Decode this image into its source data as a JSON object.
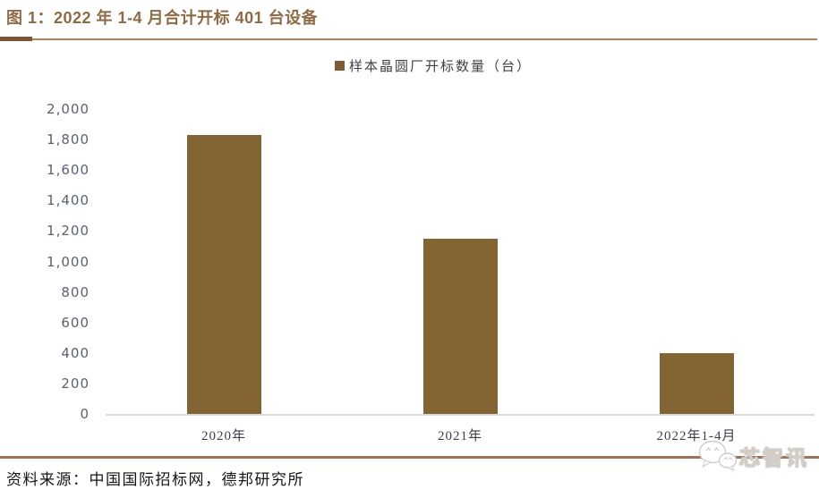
{
  "figure": {
    "title": "图 1：2022 年 1-4 月合计开标 401 台设备",
    "source": "资料来源：中国国际招标网，德邦研究所"
  },
  "legend": {
    "label": "样本晶圆厂开标数量（台）"
  },
  "chart_data": {
    "type": "bar",
    "title": "2022 年 1-4 月合计开标 401 台设备",
    "categories": [
      "2020年",
      "2021年",
      "2022年1-4月"
    ],
    "series": [
      {
        "name": "样本晶圆厂开标数量（台）",
        "values": [
          1830,
          1150,
          401
        ]
      }
    ],
    "xlabel": "",
    "ylabel": "",
    "ylim": [
      0,
      2000
    ],
    "ytick_step": 200,
    "ytick_labels": [
      "0",
      "200",
      "400",
      "600",
      "800",
      "1,000",
      "1,200",
      "1,400",
      "1,600",
      "1,800",
      "2,000"
    ],
    "grid": false,
    "legend_position": "top-center",
    "colors": {
      "bar": "#856434",
      "axis_line": "#DADADA",
      "ytick_label": "#5A6170",
      "xtick_label": "#3B404C"
    }
  },
  "watermark": {
    "text": "芯智讯",
    "icon": "wechat-chat-bubbles-icon"
  },
  "theme": {
    "title_color": "#8D6B47",
    "rule_accent_color": "#7A5434",
    "rule_color": "#AA835F",
    "bottom_rule_color": "#9C7354",
    "legend_swatch_color": "#7D5B36"
  }
}
